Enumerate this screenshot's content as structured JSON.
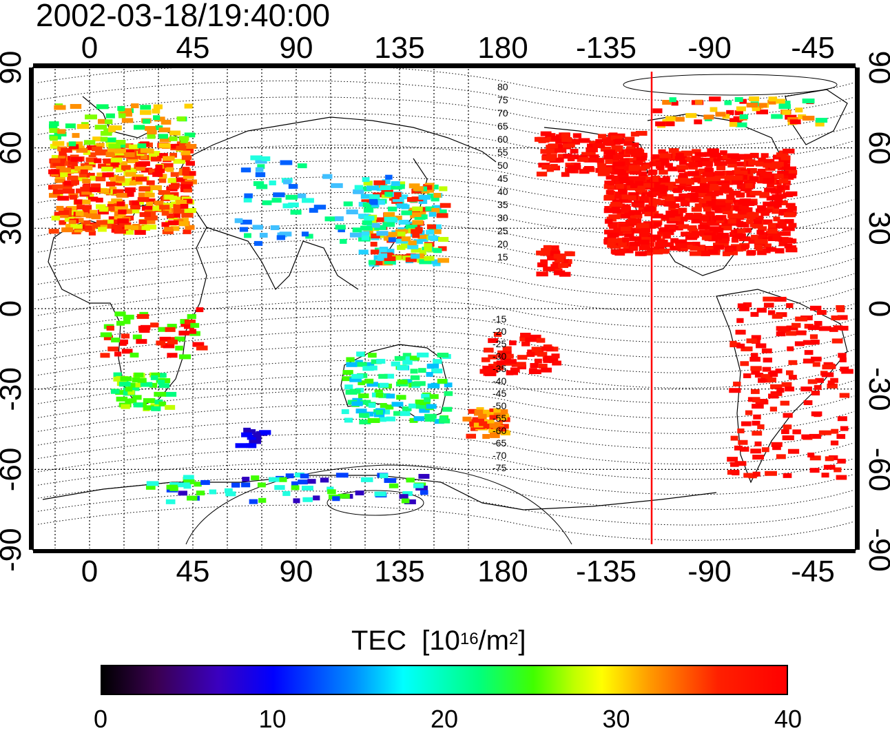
{
  "timestamp": "2002-03-18/19:40:00",
  "map": {
    "lon_ticks_top": [
      "0",
      "45",
      "90",
      "135",
      "180",
      "-135",
      "-90",
      "-45"
    ],
    "lon_ticks_bottom": [
      "0",
      "45",
      "90",
      "135",
      "180",
      "-135",
      "-90",
      "-45"
    ],
    "lat_ticks_left": [
      "90",
      "60",
      "30",
      "0",
      "-30",
      "-60",
      "-90"
    ],
    "lat_ticks_right": [
      "90",
      "60",
      "30",
      "0",
      "-30",
      "-60",
      "-90"
    ],
    "mlat_labels_north": [
      "80",
      "75",
      "70",
      "65",
      "60",
      "55",
      "50",
      "45",
      "40",
      "35",
      "30",
      "25",
      "20",
      "15"
    ],
    "mlat_labels_south": [
      "-15",
      "-20",
      "-25",
      "-30",
      "-35",
      "-40",
      "-45",
      "-50",
      "-55",
      "-60",
      "-65",
      "-70",
      "-75"
    ],
    "grid": "dotted",
    "terminator_line_color": "#ff0000",
    "terminator_longitude": -118
  },
  "colorbar": {
    "title": "TEC",
    "unit_prefix": "[10",
    "unit_exp": "16",
    "unit_mid": "/m",
    "unit_exp2": "2",
    "unit_suffix": "]",
    "ticks": [
      "0",
      "10",
      "20",
      "30",
      "40"
    ],
    "range": [
      0,
      40
    ]
  },
  "tec_regions": [
    {
      "name": "europe",
      "color": "#ff2200"
    },
    {
      "name": "north-america",
      "color": "#ff1100"
    },
    {
      "name": "japan",
      "color": "#20d0ff"
    },
    {
      "name": "australia",
      "color": "#10ff70"
    },
    {
      "name": "antarctica",
      "color": "#20ffe0"
    },
    {
      "name": "south-america",
      "color": "#ff0000"
    }
  ]
}
